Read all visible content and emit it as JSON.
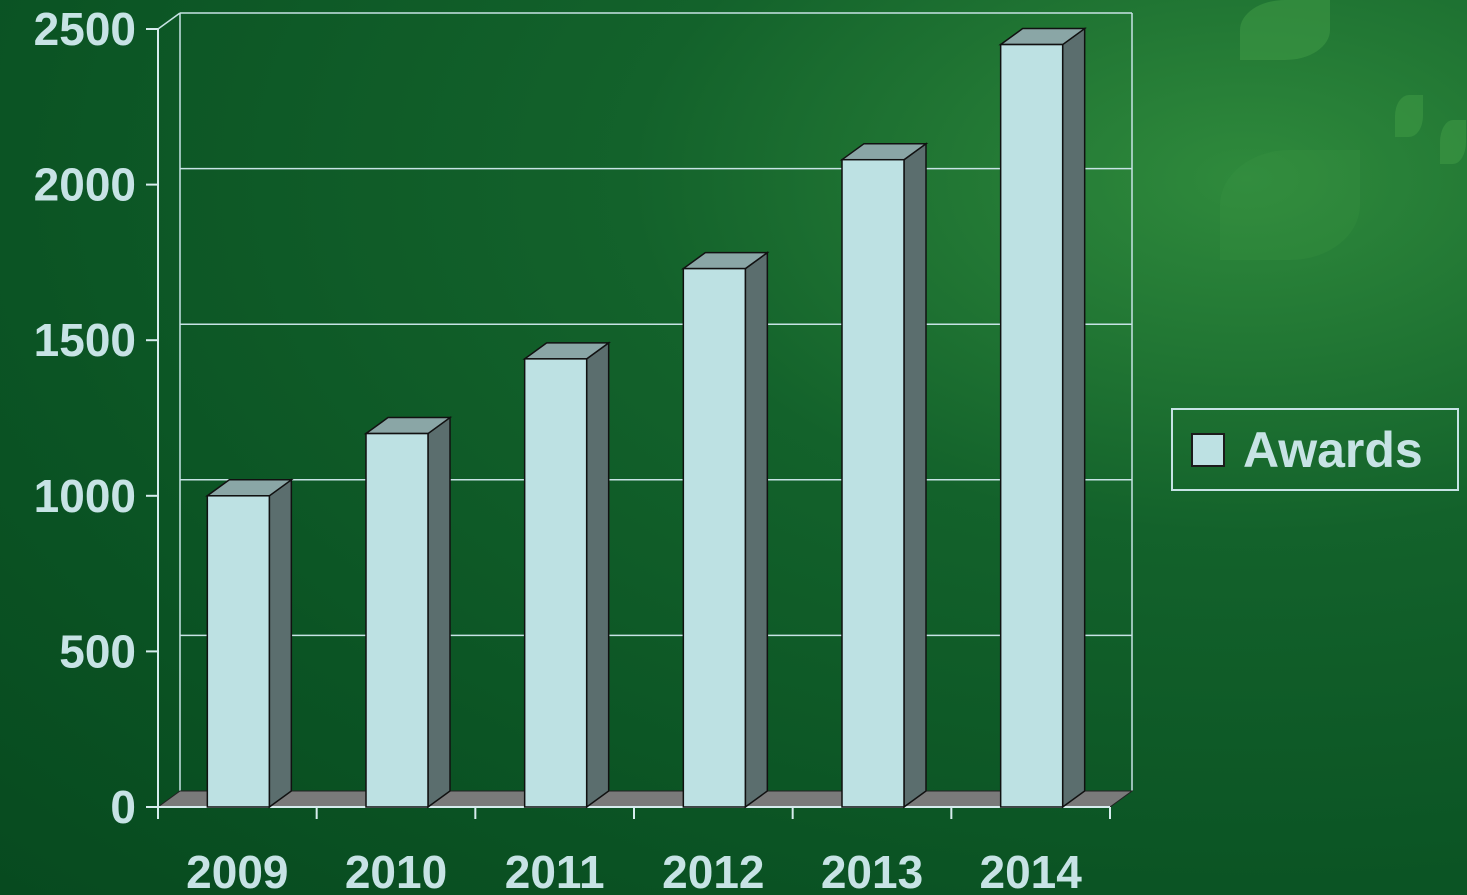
{
  "colors": {
    "bar_front": "#bde1e3",
    "bar_top": "#8aa6a6",
    "bar_side": "#5b6e6e",
    "floor": "#7a7a7a",
    "text": "#c7e3e5",
    "axis": "#d7ecee",
    "gridline": "#c7e3e5"
  },
  "legend": {
    "label": "Awards"
  },
  "chart_data": {
    "type": "bar",
    "style": "3d-column",
    "categories": [
      "2009",
      "2010",
      "2011",
      "2012",
      "2013",
      "2014"
    ],
    "series": [
      {
        "name": "Awards",
        "values": [
          1000,
          1200,
          1440,
          1730,
          2080,
          2450
        ]
      }
    ],
    "yticks": [
      "0",
      "500",
      "1000",
      "1500",
      "2000",
      "2500"
    ],
    "ylim": [
      0,
      2500
    ],
    "grid": true,
    "legend_position": "right"
  }
}
